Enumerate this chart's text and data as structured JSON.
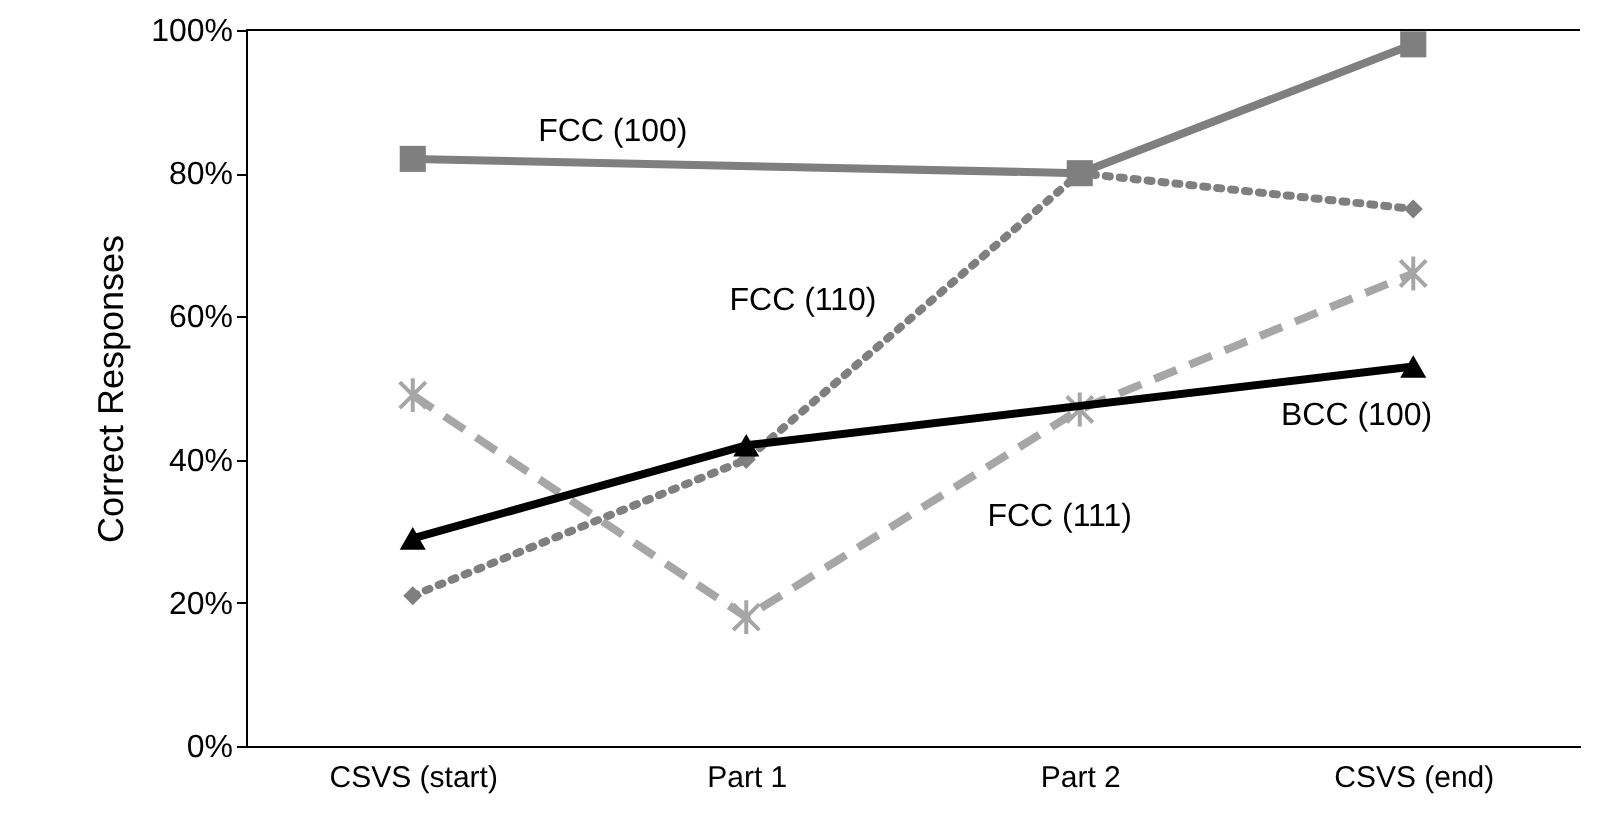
{
  "chart_data": {
    "type": "line",
    "ylabel": "Correct Responses",
    "categories": [
      "CSVS (start)",
      "Part 1",
      "Part 2",
      "CSVS (end)"
    ],
    "ylim": [
      0,
      100
    ],
    "yticks": [
      {
        "value": 0,
        "label": "0%"
      },
      {
        "value": 20,
        "label": "20%"
      },
      {
        "value": 40,
        "label": "40%"
      },
      {
        "value": 60,
        "label": "60%"
      },
      {
        "value": 80,
        "label": "80%"
      },
      {
        "value": 100,
        "label": "100%"
      }
    ],
    "grid": false,
    "series": [
      {
        "name": "FCC (100)",
        "color": "#7f7f7f",
        "marker": "square",
        "line_style": "solid",
        "values": [
          82,
          null,
          80,
          98
        ]
      },
      {
        "name": "FCC (110)",
        "color": "#7f7f7f",
        "marker": "diamond",
        "line_style": "dotted",
        "values": [
          21,
          40,
          80,
          75
        ]
      },
      {
        "name": "FCC (111)",
        "color": "#a6a6a6",
        "marker": "cross",
        "line_style": "dashed",
        "values": [
          49,
          18,
          47,
          66
        ]
      },
      {
        "name": "BCC (100)",
        "color": "#000000",
        "marker": "triangle",
        "line_style": "solid",
        "values": [
          29,
          42,
          null,
          53
        ]
      }
    ]
  }
}
